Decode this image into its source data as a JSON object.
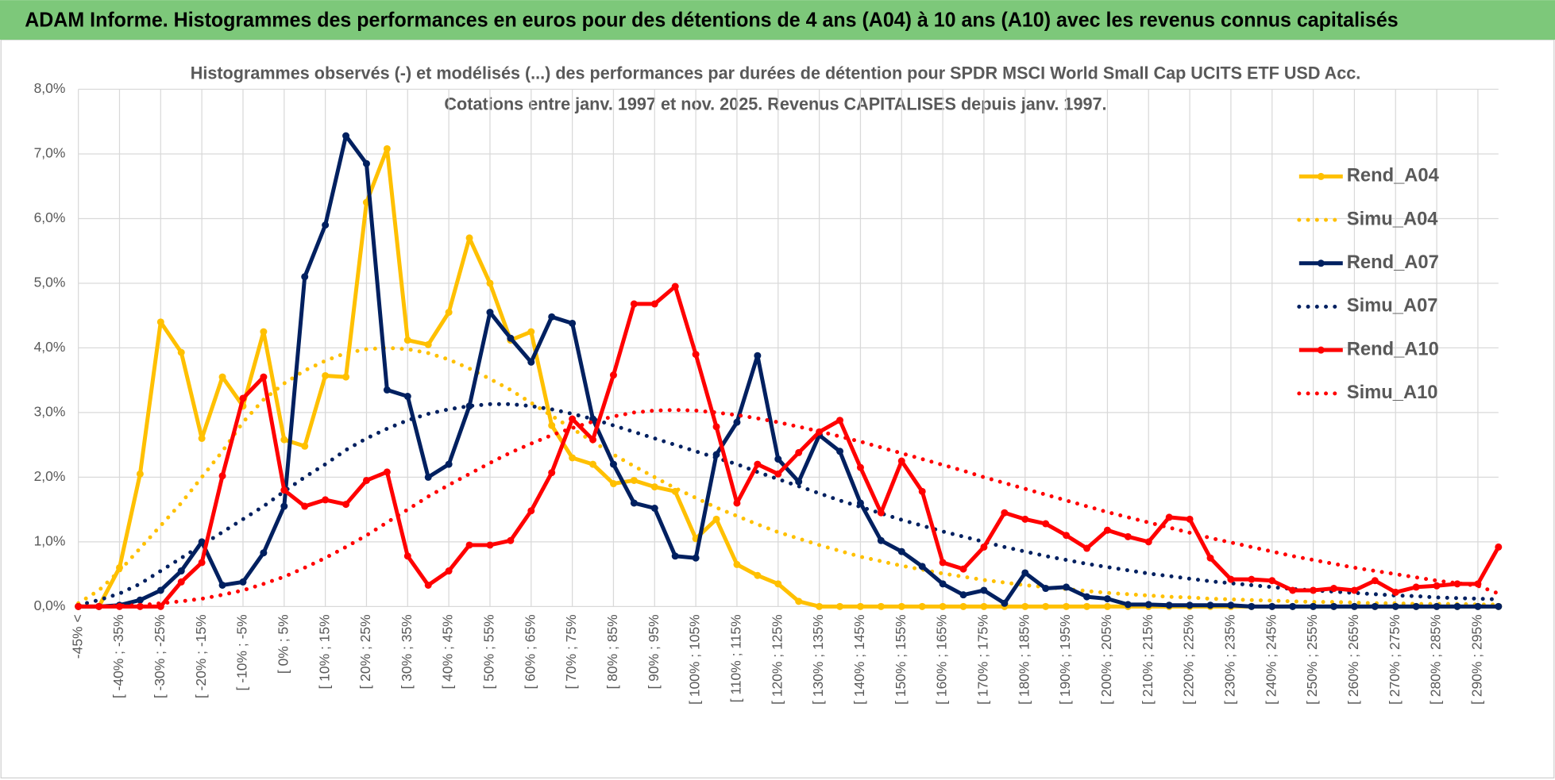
{
  "header": {
    "title": "ADAM Informe. Histogrammes des performances en euros pour des détentions de 4 ans (A04) à 10 ans (A10) avec les revenus connus capitalisés"
  },
  "chart_data": {
    "type": "line",
    "title": "Histogrammes observés (-) et modélisés (...) des performances par durées de détention pour SPDR MSCI World Small Cap UCITS ETF USD Acc.",
    "subtitle": "Cotations entre janv. 1997 et nov. 2025. Revenus CAPITALISES depuis janv. 1997.",
    "categories": [
      "-45% <",
      null,
      "[ -40% ; -35%",
      null,
      "[ -30% ; -25%",
      null,
      "[ -20% ; -15%",
      null,
      "[ -10% ; -5%",
      null,
      "[ 0% ; 5%",
      null,
      "[ 10% ; 15%",
      null,
      "[ 20% ; 25%",
      null,
      "[ 30% ; 35%",
      null,
      "[ 40% ; 45%",
      null,
      "[ 50% ; 55%",
      null,
      "[ 60% ; 65%",
      null,
      "[ 70% ; 75%",
      null,
      "[ 80% ; 85%",
      null,
      "[ 90% ; 95%",
      null,
      "[ 100% ; 105%",
      null,
      "[ 110% ; 115%",
      null,
      "[ 120% ; 125%",
      null,
      "[ 130% ; 135%",
      null,
      "[ 140% ; 145%",
      null,
      "[ 150% ; 155%",
      null,
      "[ 160% ; 165%",
      null,
      "[ 170% ; 175%",
      null,
      "[ 180% ; 185%",
      null,
      "[ 190% ; 195%",
      null,
      "[ 200% ; 205%",
      null,
      "[ 210% ; 215%",
      null,
      "[ 220% ; 225%",
      null,
      "[ 230% ; 235%",
      null,
      "[ 240% ; 245%",
      null,
      "[ 250% ; 255%",
      null,
      "[ 260% ; 265%",
      null,
      "[ 270% ; 275%",
      null,
      "[ 280% ; 285%",
      null,
      "[ 290% ; 295%",
      null
    ],
    "series": [
      {
        "name": "Rend_A04",
        "color": "#ffc000",
        "style": "solid",
        "marker": true,
        "values": [
          0,
          0,
          0.6,
          2.05,
          4.4,
          3.93,
          2.6,
          3.55,
          3.1,
          4.25,
          2.58,
          2.48,
          3.57,
          3.55,
          6.25,
          7.08,
          4.12,
          4.05,
          4.55,
          5.7,
          5.0,
          4.12,
          4.25,
          2.8,
          2.3,
          2.2,
          1.9,
          1.95,
          1.85,
          1.78,
          1.05,
          1.35,
          0.65,
          0.48,
          0.35,
          0.08,
          0,
          0,
          0,
          0,
          0,
          0,
          0,
          0,
          0,
          0,
          0,
          0,
          0,
          0,
          0,
          0,
          0,
          0,
          0,
          0,
          0,
          0,
          0,
          0,
          0,
          0,
          0,
          0,
          0,
          0,
          0,
          0,
          0,
          0
        ]
      },
      {
        "name": "Simu_A04",
        "color": "#ffc000",
        "style": "dotted",
        "marker": false,
        "values": [
          0.05,
          0.25,
          0.55,
          0.9,
          1.25,
          1.6,
          2.0,
          2.4,
          2.85,
          3.2,
          3.45,
          3.65,
          3.8,
          3.92,
          3.98,
          4.0,
          3.98,
          3.92,
          3.82,
          3.68,
          3.52,
          3.35,
          3.15,
          2.95,
          2.75,
          2.55,
          2.35,
          2.17,
          2.0,
          1.83,
          1.68,
          1.53,
          1.4,
          1.27,
          1.15,
          1.05,
          0.95,
          0.86,
          0.77,
          0.7,
          0.63,
          0.57,
          0.51,
          0.46,
          0.41,
          0.37,
          0.33,
          0.3,
          0.27,
          0.24,
          0.21,
          0.19,
          0.17,
          0.15,
          0.14,
          0.12,
          0.11,
          0.1,
          0.09,
          0.08,
          0.07,
          0.07,
          0.06,
          0.05,
          0.05,
          0.04,
          0.04,
          0.04,
          0.03,
          0.03
        ]
      },
      {
        "name": "Rend_A07",
        "color": "#002060",
        "style": "solid",
        "marker": true,
        "values": [
          0,
          0,
          0.02,
          0.1,
          0.25,
          0.55,
          1.0,
          0.33,
          0.38,
          0.83,
          1.55,
          5.1,
          5.9,
          7.28,
          6.85,
          3.35,
          3.25,
          2.0,
          2.2,
          3.1,
          4.55,
          4.15,
          3.78,
          4.48,
          4.38,
          2.9,
          2.2,
          1.6,
          1.52,
          0.78,
          0.75,
          2.35,
          2.85,
          3.88,
          2.28,
          1.93,
          2.65,
          2.4,
          1.6,
          1.02,
          0.85,
          0.62,
          0.35,
          0.18,
          0.25,
          0.05,
          0.52,
          0.28,
          0.3,
          0.15,
          0.12,
          0.03,
          0.03,
          0.02,
          0.02,
          0.02,
          0.02,
          0,
          0,
          0,
          0,
          0,
          0,
          0,
          0,
          0,
          0,
          0,
          0,
          0
        ]
      },
      {
        "name": "Simu_A07",
        "color": "#002060",
        "style": "dotted",
        "marker": false,
        "values": [
          0.02,
          0.1,
          0.2,
          0.35,
          0.55,
          0.75,
          0.95,
          1.15,
          1.35,
          1.55,
          1.78,
          2.0,
          2.2,
          2.42,
          2.6,
          2.75,
          2.88,
          2.98,
          3.05,
          3.1,
          3.13,
          3.13,
          3.1,
          3.05,
          2.98,
          2.9,
          2.8,
          2.7,
          2.6,
          2.5,
          2.4,
          2.3,
          2.2,
          2.08,
          1.97,
          1.86,
          1.75,
          1.64,
          1.54,
          1.44,
          1.34,
          1.25,
          1.16,
          1.08,
          1.0,
          0.92,
          0.85,
          0.78,
          0.72,
          0.66,
          0.61,
          0.56,
          0.51,
          0.47,
          0.43,
          0.39,
          0.36,
          0.33,
          0.3,
          0.27,
          0.25,
          0.23,
          0.21,
          0.19,
          0.17,
          0.16,
          0.14,
          0.13,
          0.12,
          0.11
        ]
      },
      {
        "name": "Rend_A10",
        "color": "#ff0000",
        "style": "solid",
        "marker": true,
        "values": [
          0,
          0,
          0,
          0,
          0,
          0.38,
          0.68,
          2.02,
          3.22,
          3.55,
          1.8,
          1.55,
          1.65,
          1.58,
          1.95,
          2.08,
          0.78,
          0.33,
          0.55,
          0.95,
          0.95,
          1.02,
          1.48,
          2.07,
          2.9,
          2.58,
          3.58,
          4.68,
          4.68,
          4.95,
          3.9,
          2.78,
          1.6,
          2.2,
          2.05,
          2.38,
          2.7,
          2.88,
          2.15,
          1.45,
          2.25,
          1.78,
          0.68,
          0.58,
          0.92,
          1.45,
          1.35,
          1.28,
          1.1,
          0.9,
          1.18,
          1.08,
          1.0,
          1.38,
          1.35,
          0.75,
          0.42,
          0.42,
          0.4,
          0.25,
          0.25,
          0.28,
          0.25,
          0.4,
          0.22,
          0.3,
          0.32,
          0.35,
          0.35,
          0.92
        ]
      },
      {
        "name": "Simu_A10",
        "color": "#ff0000",
        "style": "dotted",
        "marker": false,
        "values": [
          0,
          0,
          0.01,
          0.02,
          0.05,
          0.08,
          0.12,
          0.18,
          0.25,
          0.35,
          0.46,
          0.6,
          0.75,
          0.92,
          1.1,
          1.3,
          1.5,
          1.7,
          1.88,
          2.05,
          2.22,
          2.38,
          2.52,
          2.65,
          2.76,
          2.86,
          2.94,
          3.0,
          3.03,
          3.04,
          3.03,
          3.0,
          2.96,
          2.91,
          2.85,
          2.78,
          2.71,
          2.63,
          2.55,
          2.46,
          2.37,
          2.28,
          2.19,
          2.1,
          2.0,
          1.91,
          1.82,
          1.73,
          1.64,
          1.55,
          1.46,
          1.38,
          1.3,
          1.22,
          1.14,
          1.06,
          0.99,
          0.92,
          0.85,
          0.78,
          0.72,
          0.66,
          0.6,
          0.55,
          0.5,
          0.45,
          0.4,
          0.36,
          0.32,
          0.2
        ]
      }
    ],
    "ylim": [
      0,
      8
    ],
    "yticks": [
      {
        "value": 0,
        "label": "0,0%"
      },
      {
        "value": 1,
        "label": "1,0%"
      },
      {
        "value": 2,
        "label": "2,0%"
      },
      {
        "value": 3,
        "label": "3,0%"
      },
      {
        "value": 4,
        "label": "4,0%"
      },
      {
        "value": 5,
        "label": "5,0%"
      },
      {
        "value": 6,
        "label": "6,0%"
      },
      {
        "value": 7,
        "label": "7,0%"
      },
      {
        "value": 8,
        "label": "8,0%"
      }
    ],
    "grid": true,
    "legend": "upper right"
  }
}
